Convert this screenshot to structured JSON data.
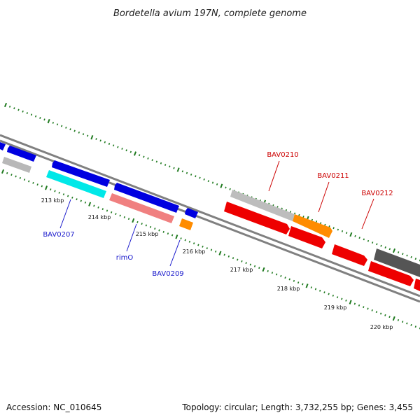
{
  "title": "Bordetella avium 197N, complete genome",
  "footer": {
    "accession": "Accession: NC_010645",
    "topology": "Topology: circular; Length: 3,732,255 bp; Genes: 3,455"
  },
  "colors": {
    "backbone": "#808080",
    "tick": "#1f7a1f",
    "label_forward": "#cc0000",
    "label_reverse": "#1a1acc"
  },
  "kbp_ticks": [
    "213 kbp",
    "214 kbp",
    "215 kbp",
    "216 kbp",
    "217 kbp",
    "218 kbp",
    "219 kbp",
    "220 kbp"
  ],
  "gene_labels": [
    {
      "name": "BAV0207",
      "strand": "reverse"
    },
    {
      "name": "rimO",
      "strand": "reverse"
    },
    {
      "name": "BAV0209",
      "strand": "reverse"
    },
    {
      "name": "BAV0210",
      "strand": "forward"
    },
    {
      "name": "BAV0211",
      "strand": "forward"
    },
    {
      "name": "BAV0212",
      "strand": "forward"
    }
  ]
}
